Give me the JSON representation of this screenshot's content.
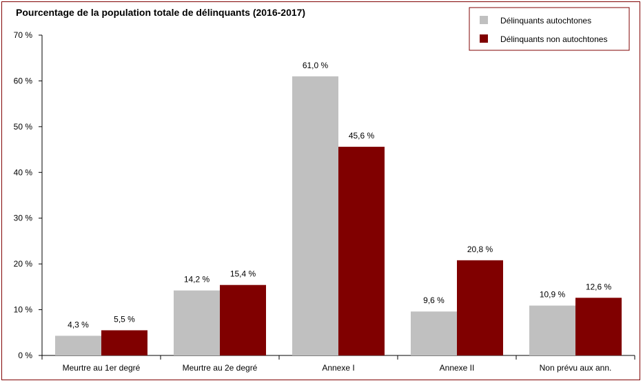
{
  "chart_data": {
    "type": "bar",
    "title": "Pourcentage de la population totale de délinquants (2016-2017)",
    "categories": [
      "Meurtre au 1er degré",
      "Meurtre au 2e degré",
      "Annexe I",
      "Annexe II",
      "Non prévu aux ann."
    ],
    "series": [
      {
        "name": "Délinquants autochtones",
        "values": [
          4.3,
          14.2,
          61.0,
          9.6,
          10.9
        ],
        "labels": [
          "4,3 %",
          "14,2 %",
          "61,0 %",
          "9,6 %",
          "10,9 %"
        ],
        "color": "#c0c0c0"
      },
      {
        "name": "Délinquants non autochtones",
        "values": [
          5.5,
          15.4,
          45.6,
          20.8,
          12.6
        ],
        "labels": [
          "5,5 %",
          "15,4 %",
          "45,6 %",
          "20,8 %",
          "12,6 %"
        ],
        "color": "#800000"
      }
    ],
    "yticks": [
      0,
      10,
      20,
      30,
      40,
      50,
      60,
      70
    ],
    "ytick_labels": [
      "0 %",
      "10 %",
      "20 %",
      "30 %",
      "40 %",
      "50 %",
      "60 %",
      "70 %"
    ],
    "ylim": [
      0,
      70
    ],
    "grid": false,
    "legend_position": "top-right",
    "frame_color": "#7f0000"
  }
}
